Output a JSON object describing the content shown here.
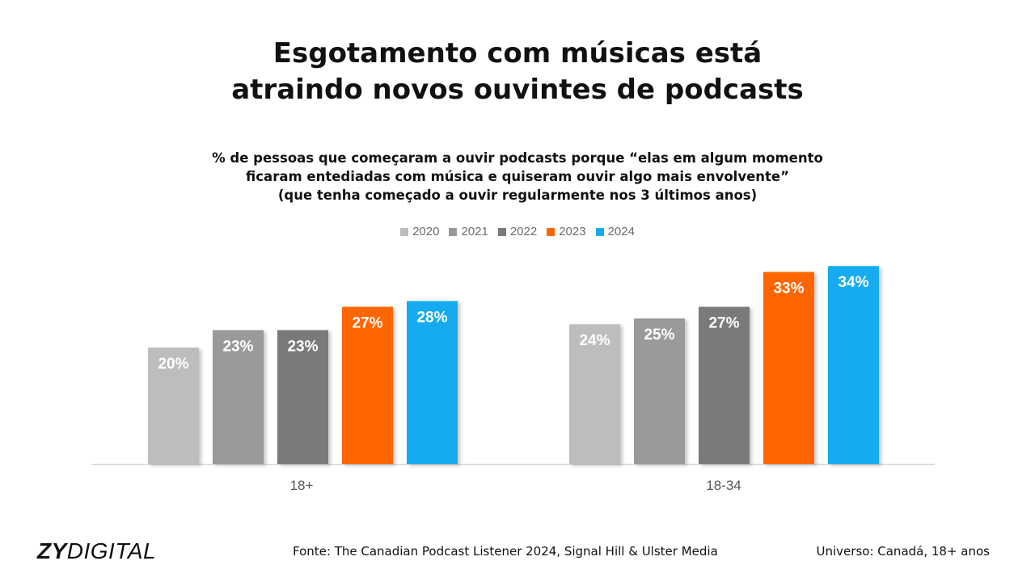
{
  "title_lines": [
    "Esgotamento com músicas está",
    "atraindo novos ouvintes de podcasts"
  ],
  "subtitle_lines": [
    "% de pessoas que começaram a ouvir podcasts porque “elas em algum momento",
    "ficaram entediadas com música e quiseram ouvir algo mais envolvente”",
    "(que tenha começado a ouvir regularmente nos 3 últimos anos)"
  ],
  "chart_data": {
    "type": "bar",
    "categories": [
      "18+",
      "18-34"
    ],
    "series": [
      {
        "name": "2020",
        "color": "#bdbdbd",
        "values": [
          20,
          24
        ]
      },
      {
        "name": "2021",
        "color": "#9a9a9a",
        "values": [
          23,
          25
        ]
      },
      {
        "name": "2022",
        "color": "#7a7a7a",
        "values": [
          23,
          27
        ]
      },
      {
        "name": "2023",
        "color": "#ff6600",
        "values": [
          27,
          33
        ]
      },
      {
        "name": "2024",
        "color": "#12abf0",
        "values": [
          28,
          34
        ]
      }
    ],
    "value_suffix": "%",
    "ylim": [
      0,
      40
    ],
    "legend_position": "top-center",
    "grid": false
  },
  "footer": {
    "logo_bold": "ZY",
    "logo_rest": "DIGITAL",
    "source": "Fonte: The Canadian Podcast Listener 2024, Signal Hill & Ulster Media",
    "universe": "Universo: Canadá, 18+ anos"
  }
}
